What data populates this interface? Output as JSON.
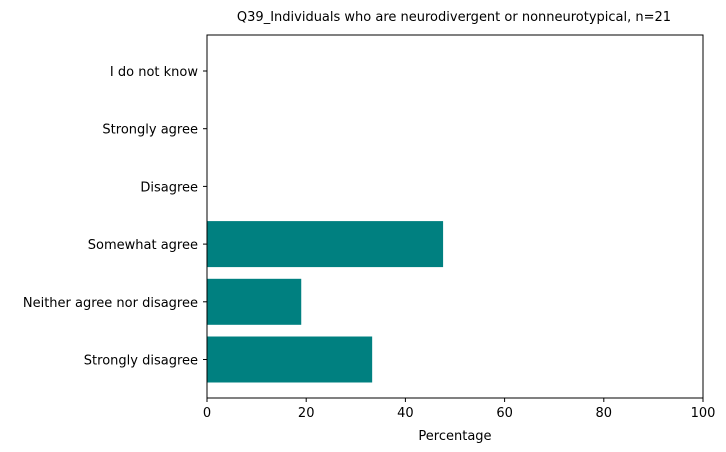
{
  "chart_data": {
    "type": "bar",
    "orientation": "horizontal",
    "title": "Q39_Individuals who are neurodivergent or nonneurotypical, n=21",
    "xlabel": "Percentage",
    "ylabel": "",
    "categories": [
      "Strongly disagree",
      "Neither agree nor disagree",
      "Somewhat agree",
      "Disagree",
      "Strongly agree",
      "I do not know"
    ],
    "values": [
      33.3,
      19.0,
      47.6,
      0,
      0,
      0
    ],
    "xlim": [
      0,
      100
    ],
    "xticks": [
      0,
      20,
      40,
      60,
      80,
      100
    ],
    "grid": false,
    "legend": "none",
    "bar_color": "#008080"
  }
}
